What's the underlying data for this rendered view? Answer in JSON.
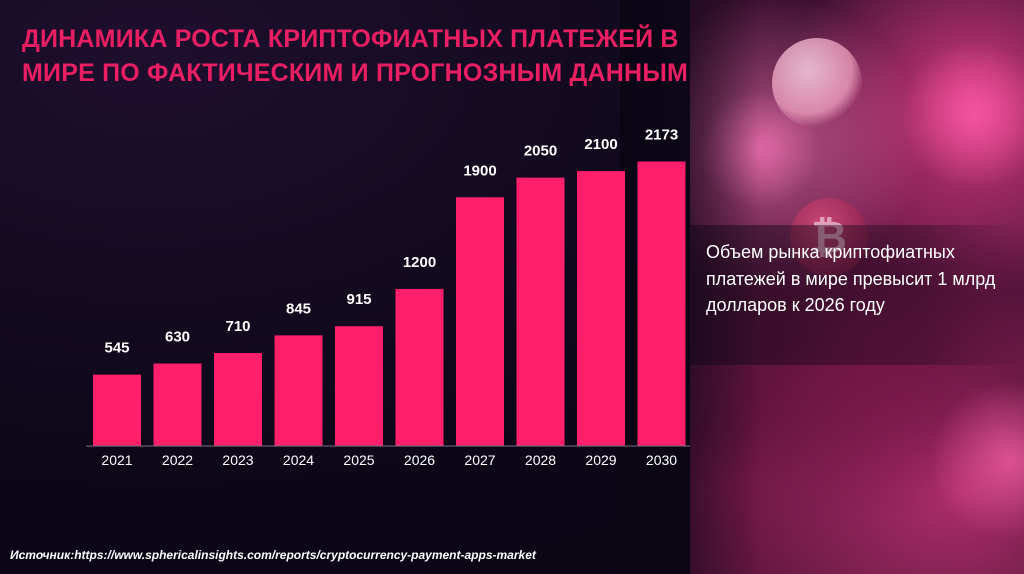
{
  "colors": {
    "accent": "#e91e63",
    "bar": "#ff1f6b",
    "text": "#ffffff",
    "background": "#0a0614"
  },
  "slide": {
    "title": "ДИНАМИКА РОСТА КРИПТОФИАТНЫХ ПЛАТЕЖЕЙ В МИРЕ ПО ФАКТИЧЕСКИМ И ПРОГНОЗНЫМ ДАННЫМ",
    "callout": "Объем рынка криптофиатных платежей в мире превысит 1 млрд долларов к 2026 году",
    "source": "Источник:https://www.sphericalinsights.com/reports/cryptocurrency-payment-apps-market",
    "coin_icon": "bitcoin-icon"
  },
  "chart_data": {
    "type": "bar",
    "categories": [
      "2021",
      "2022",
      "2023",
      "2024",
      "2025",
      "2026",
      "2027",
      "2028",
      "2029",
      "2030"
    ],
    "values": [
      545,
      630,
      710,
      845,
      915,
      1200,
      1900,
      2050,
      2100,
      2173
    ],
    "data_labels": [
      "545",
      "630",
      "710",
      "845",
      "915",
      "1200",
      "1900",
      "2050",
      "2100",
      "2173"
    ],
    "title": "",
    "xlabel": "",
    "ylabel": "",
    "legend": "none",
    "grid": false,
    "y_axis": "hidden"
  }
}
